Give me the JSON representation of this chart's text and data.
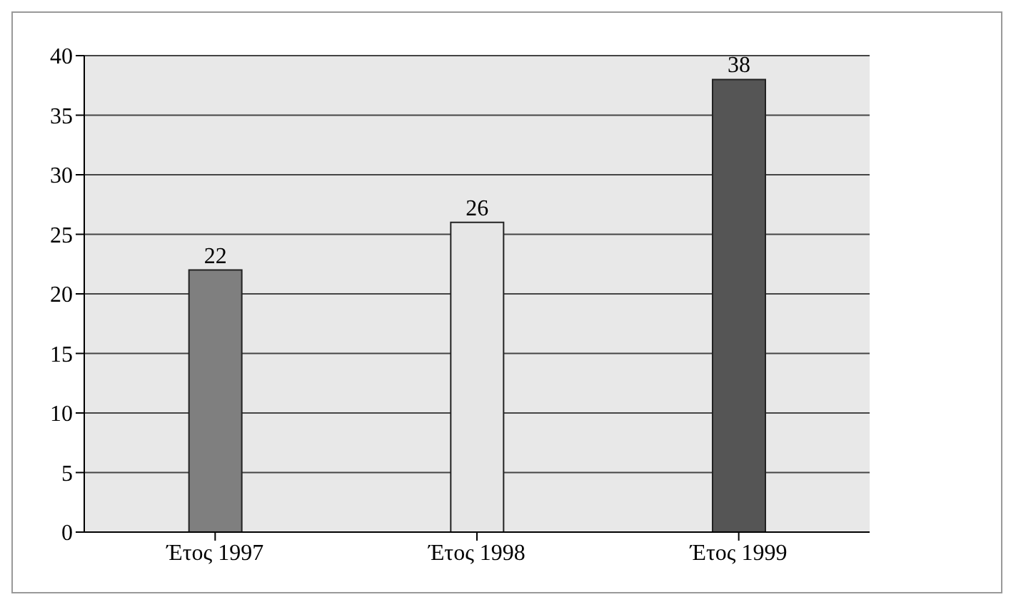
{
  "chart_data": {
    "type": "bar",
    "categories": [
      "Έτος 1997",
      "Έτος 1998",
      "Έτος 1999"
    ],
    "values": [
      22,
      26,
      38
    ],
    "colors": [
      "#7f7f7f",
      "#e6e6e6",
      "#555555"
    ],
    "ylim": [
      0,
      40
    ],
    "yticks": [
      0,
      5,
      10,
      15,
      20,
      25,
      30,
      35,
      40
    ],
    "grid": "y",
    "data_labels": true
  }
}
